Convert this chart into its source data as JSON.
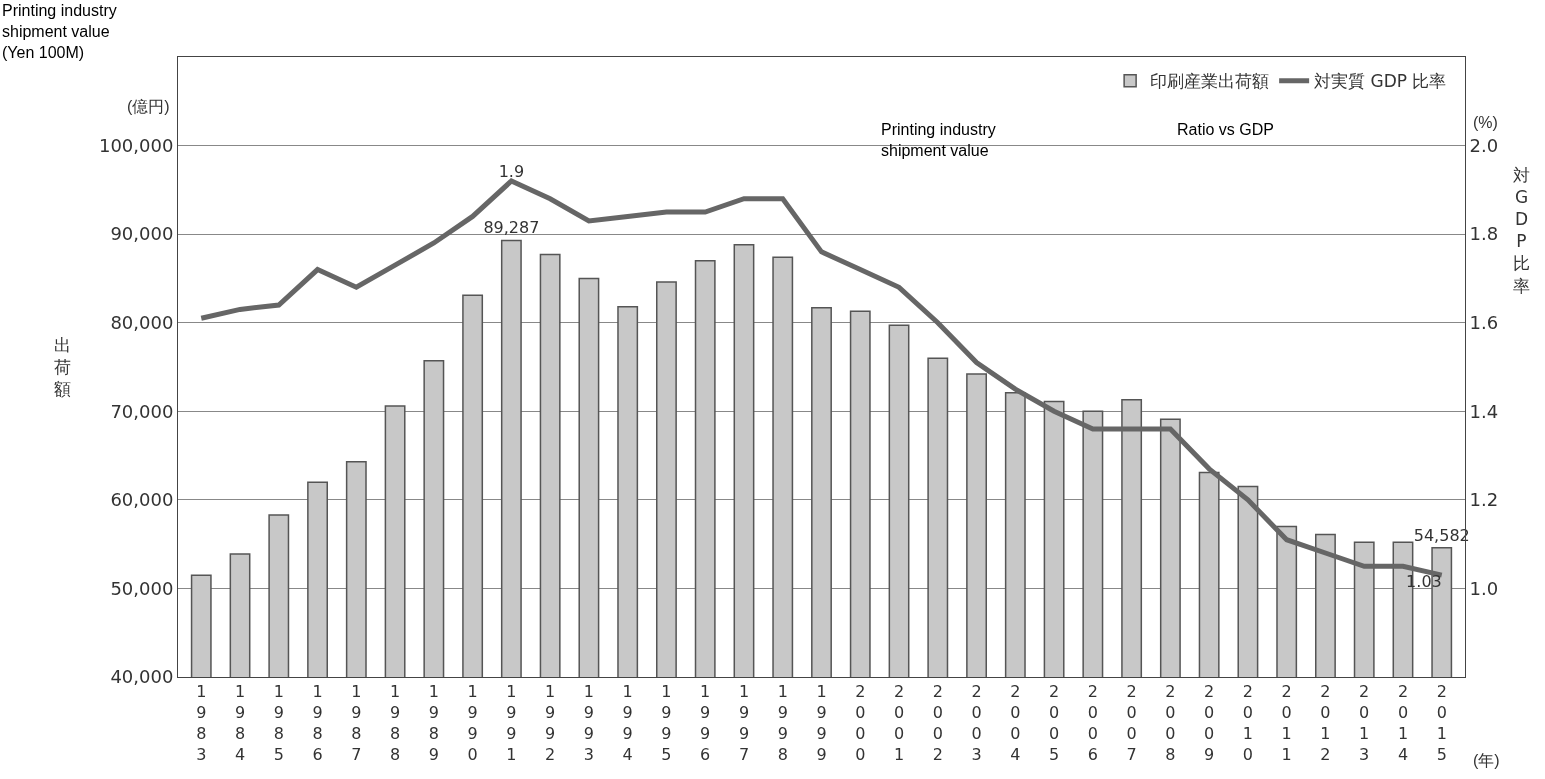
{
  "chart_data": {
    "type": "bar",
    "categories": [
      "1983",
      "1984",
      "1985",
      "1986",
      "1987",
      "1988",
      "1989",
      "1990",
      "1991",
      "1992",
      "1993",
      "1994",
      "1995",
      "1996",
      "1997",
      "1998",
      "1999",
      "2000",
      "2001",
      "2002",
      "2003",
      "2004",
      "2005",
      "2006",
      "2007",
      "2008",
      "2009",
      "2010",
      "2011",
      "2012",
      "2013",
      "2014",
      "2015"
    ],
    "series": [
      {
        "name": "印刷産業出荷額",
        "color": "#c8c8c8",
        "values": [
          51500,
          53900,
          58300,
          62000,
          64300,
          70600,
          75700,
          83100,
          89287,
          87700,
          85000,
          81800,
          84600,
          87000,
          88800,
          87400,
          81700,
          81300,
          79700,
          76000,
          74200,
          72100,
          71100,
          70000,
          71300,
          69100,
          63100,
          61500,
          57000,
          56100,
          55200,
          55200,
          54582
        ],
        "value_labels": [
          null,
          null,
          null,
          null,
          null,
          null,
          null,
          null,
          "89,287",
          null,
          null,
          null,
          null,
          null,
          null,
          null,
          null,
          null,
          null,
          null,
          null,
          null,
          null,
          null,
          null,
          null,
          null,
          null,
          null,
          null,
          null,
          null,
          "54,582"
        ]
      },
      {
        "name": "対実質 GDP 比率",
        "type": "line",
        "axis": "y2",
        "color": "#666666",
        "values": [
          1.61,
          1.63,
          1.64,
          1.72,
          1.68,
          1.73,
          1.78,
          1.84,
          1.92,
          1.88,
          1.83,
          1.84,
          1.85,
          1.85,
          1.88,
          1.88,
          1.76,
          1.72,
          1.68,
          1.6,
          1.51,
          1.45,
          1.4,
          1.36,
          1.36,
          1.36,
          1.27,
          1.2,
          1.11,
          1.08,
          1.05,
          1.05,
          1.03
        ],
        "value_labels": [
          null,
          null,
          null,
          null,
          null,
          null,
          null,
          null,
          "1.9",
          null,
          null,
          null,
          null,
          null,
          null,
          null,
          null,
          null,
          null,
          null,
          null,
          null,
          null,
          null,
          null,
          null,
          null,
          null,
          null,
          null,
          null,
          null,
          "1.03"
        ]
      }
    ],
    "ylabel": "出荷額",
    "y2label": "対GDP比率",
    "ylim": [
      40000,
      110000
    ],
    "yticks": [
      {
        "value": 40000,
        "label": "40,000"
      },
      {
        "value": 50000,
        "label": "50,000"
      },
      {
        "value": 60000,
        "label": "60,000"
      },
      {
        "value": 70000,
        "label": "70,000"
      },
      {
        "value": 80000,
        "label": "80,000"
      },
      {
        "value": 90000,
        "label": "90,000"
      },
      {
        "value": 100000,
        "label": "100,000"
      }
    ],
    "y2lim": [
      0.8,
      2.2
    ],
    "y2ticks": [
      {
        "value": 1.0,
        "label": "1.0"
      },
      {
        "value": 1.2,
        "label": "1.2"
      },
      {
        "value": 1.4,
        "label": "1.4"
      },
      {
        "value": 1.6,
        "label": "1.6"
      },
      {
        "value": 1.8,
        "label": "1.8"
      },
      {
        "value": 2.0,
        "label": "2.0"
      }
    ],
    "grid": "y",
    "legend": "top right",
    "annotations": [
      "Printing industry shipment value (Yen 100M)",
      "(億円)",
      "(%)",
      "(年)",
      "Printing industry shipment value",
      "Ratio vs GDP"
    ]
  }
}
